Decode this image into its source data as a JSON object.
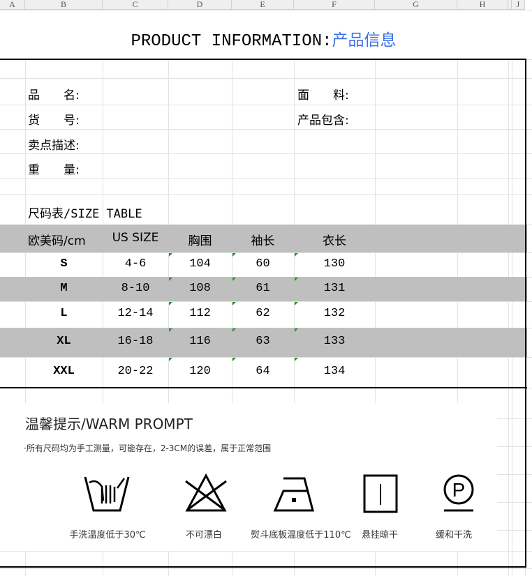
{
  "columns": [
    "A",
    "B",
    "C",
    "D",
    "E",
    "F",
    "G",
    "H",
    "",
    "J"
  ],
  "title": {
    "en": "PRODUCT INFORMATION:",
    "cn": "产品信息"
  },
  "info": {
    "name": "品　　名:",
    "material": "面　　料:",
    "item_no": "货　　号:",
    "package": "产品包含:",
    "selling_points": "卖点描述:",
    "weight": "重　　量:"
  },
  "size_table": {
    "title": "尺码表/SIZE TABLE",
    "headers": [
      "欧美码/cm",
      "US SIZE",
      "胸围",
      "袖长",
      "衣长"
    ],
    "rows": [
      [
        "S",
        "4-6",
        "104",
        "60",
        "130"
      ],
      [
        "M",
        "8-10",
        "108",
        "61",
        "131"
      ],
      [
        "L",
        "12-14",
        "112",
        "62",
        "132"
      ],
      [
        "XL",
        "16-18",
        "116",
        "63",
        "133"
      ],
      [
        "XXL",
        "20-22",
        "120",
        "64",
        "134"
      ]
    ],
    "band_color": "#bfbfbf"
  },
  "prompt": {
    "title": "温馨提示/WARM PROMPT",
    "note": "·所有尺码均为手工测量，可能存在，2-3CM的误差，属于正常范围",
    "care": [
      {
        "icon": "hand-wash-icon",
        "label": "手洗温度低于30℃"
      },
      {
        "icon": "no-bleach-icon",
        "label": "不可漂白"
      },
      {
        "icon": "iron-low-icon",
        "label": "熨斗底板温度低于110℃"
      },
      {
        "icon": "hang-dry-icon",
        "label": "悬挂晾干"
      },
      {
        "icon": "dry-clean-p-icon",
        "label": "缓和干洗"
      }
    ]
  },
  "accent": "#3b6fe8"
}
